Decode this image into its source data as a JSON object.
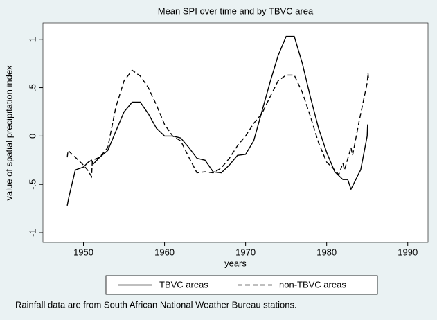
{
  "chart_data": {
    "type": "line",
    "title": "Mean SPI over time and by TBVC area",
    "xlabel": "years",
    "ylabel": "value of spatial precipitation index",
    "note": "Rainfall data are from South African National Weather Bureau stations.",
    "xlim": [
      1945,
      1992.5
    ],
    "xticks": [
      1950,
      1960,
      1970,
      1980,
      1990
    ],
    "ylim": [
      -1.1,
      1.17
    ],
    "yticks": [
      {
        "value": -1,
        "label": "-1"
      },
      {
        "value": -0.5,
        "label": "-.5"
      },
      0,
      {
        "value": 0.5,
        "label": ".5"
      },
      1
    ],
    "legend": "bottom",
    "series": [
      {
        "name": "TBVC areas",
        "color": "#000000",
        "dash": "solid",
        "x": [
          1948,
          1948.2,
          1949,
          1950,
          1950.6,
          1951,
          1951.2,
          1952,
          1953,
          1954,
          1955,
          1956,
          1957,
          1958,
          1959,
          1960,
          1961,
          1962,
          1963,
          1964,
          1965,
          1966,
          1967,
          1968,
          1969,
          1970,
          1971,
          1972,
          1973,
          1974,
          1975,
          1976,
          1977,
          1978,
          1979,
          1980,
          1981,
          1982,
          1982.6,
          1983,
          1983.3,
          1984,
          1984.2,
          1985,
          1985.05
        ],
        "values": [
          -0.72,
          -0.63,
          -0.35,
          -0.32,
          -0.27,
          -0.25,
          -0.29,
          -0.22,
          -0.15,
          0.05,
          0.25,
          0.35,
          0.35,
          0.23,
          0.08,
          0.0,
          0.0,
          -0.02,
          -0.12,
          -0.23,
          -0.25,
          -0.37,
          -0.38,
          -0.3,
          -0.2,
          -0.19,
          -0.05,
          0.25,
          0.55,
          0.83,
          1.03,
          1.03,
          0.75,
          0.4,
          0.08,
          -0.17,
          -0.37,
          -0.45,
          -0.45,
          -0.55,
          -0.5,
          -0.38,
          -0.35,
          0.0,
          0.12
        ]
      },
      {
        "name": "non-TBVC areas",
        "color": "#000000",
        "dash": "dashed",
        "x": [
          1948,
          1948.1,
          1949,
          1950,
          1950.5,
          1951,
          1951.1,
          1952,
          1953,
          1954,
          1955,
          1956,
          1957,
          1958,
          1959,
          1960,
          1961,
          1962,
          1963,
          1964,
          1965,
          1966,
          1967,
          1968,
          1969,
          1970,
          1971,
          1972,
          1973,
          1974,
          1975,
          1976,
          1977,
          1978,
          1979,
          1980,
          1981,
          1981.5,
          1982,
          1982.2,
          1983,
          1983.2,
          1984,
          1985,
          1985.1,
          1985.15
        ],
        "values": [
          -0.22,
          -0.15,
          -0.22,
          -0.3,
          -0.35,
          -0.42,
          -0.25,
          -0.22,
          -0.12,
          0.3,
          0.57,
          0.68,
          0.62,
          0.5,
          0.32,
          0.12,
          0.0,
          -0.05,
          -0.22,
          -0.38,
          -0.37,
          -0.38,
          -0.33,
          -0.23,
          -0.1,
          0.0,
          0.13,
          0.23,
          0.4,
          0.57,
          0.63,
          0.63,
          0.45,
          0.2,
          -0.07,
          -0.27,
          -0.35,
          -0.4,
          -0.28,
          -0.35,
          -0.12,
          -0.2,
          0.15,
          0.55,
          0.65,
          0.6
        ]
      }
    ]
  }
}
